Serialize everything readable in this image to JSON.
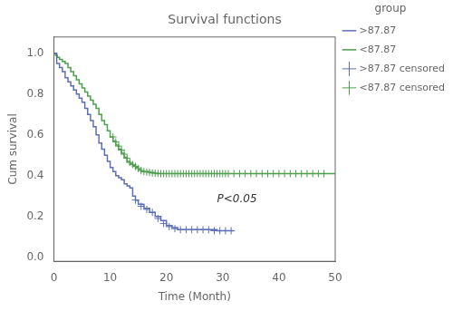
{
  "chart_data": {
    "type": "step",
    "title": "Survival functions",
    "x_label": "Time (Month)",
    "y_label": "Cum survival",
    "xlim": [
      0,
      50
    ],
    "ylim": [
      -0.02,
      1.08
    ],
    "xticks": [
      0,
      10,
      20,
      30,
      40,
      50
    ],
    "yticks": [
      {
        "value": 0.0,
        "label": "0.0"
      },
      0.2,
      0.4,
      0.6,
      0.8,
      {
        "value": 1.0,
        "label": "1.0"
      }
    ],
    "grid": false,
    "legend": "right",
    "legend_title": "group",
    "annotations": [
      {
        "text": "P<0.05",
        "x": 29,
        "y": 0.255
      }
    ],
    "series": [
      {
        "name": ">87.87",
        "type": "step",
        "color": "#5b6fb5",
        "x": [
          0,
          0.5,
          1.0,
          1.5,
          2.0,
          2.5,
          3.0,
          3.5,
          4.0,
          4.5,
          5.0,
          5.5,
          6.0,
          6.5,
          7.0,
          7.5,
          8.0,
          8.5,
          9.0,
          9.5,
          10.0,
          10.5,
          11.0,
          11.5,
          12.0,
          12.5,
          13.0,
          13.5,
          14.0,
          14.5,
          15.0,
          16.0,
          17.0,
          18.0,
          19.0,
          20.0,
          21.0,
          22.0,
          23.0,
          24.0,
          25.0,
          26.0,
          27.0,
          28.0,
          29.0,
          30.0,
          31.0,
          32.0
        ],
        "values": [
          1.0,
          0.95,
          0.93,
          0.91,
          0.88,
          0.86,
          0.84,
          0.82,
          0.8,
          0.78,
          0.76,
          0.73,
          0.7,
          0.67,
          0.64,
          0.6,
          0.56,
          0.53,
          0.5,
          0.47,
          0.44,
          0.42,
          0.4,
          0.39,
          0.38,
          0.36,
          0.35,
          0.34,
          0.3,
          0.28,
          0.26,
          0.24,
          0.22,
          0.2,
          0.18,
          0.155,
          0.145,
          0.135,
          0.135,
          0.135,
          0.135,
          0.135,
          0.135,
          0.135,
          0.13,
          0.13,
          0.13,
          0.13
        ]
      },
      {
        "name": "<87.87",
        "type": "step",
        "color": "#4d9e4d",
        "x": [
          0,
          0.3,
          0.6,
          1.0,
          1.5,
          2.0,
          2.5,
          3.0,
          3.5,
          4.0,
          4.5,
          5.0,
          5.5,
          6.0,
          6.5,
          7.0,
          7.5,
          8.0,
          8.5,
          9.0,
          9.5,
          10.0,
          10.5,
          11.0,
          11.5,
          12.0,
          12.5,
          13.0,
          13.5,
          14.0,
          14.5,
          15.0,
          15.5,
          16.0,
          17.0,
          18.0,
          19.0,
          20.0,
          21.0,
          22.0,
          23.0,
          24.0,
          25.0,
          26.0,
          27.0,
          28.0,
          29.0,
          30.0,
          31.0,
          32.0,
          34.0,
          36.0,
          38.0,
          40.0,
          42.0,
          44.0,
          46.0,
          48.0,
          50.0
        ],
        "values": [
          1.0,
          0.99,
          0.98,
          0.97,
          0.96,
          0.95,
          0.93,
          0.91,
          0.89,
          0.87,
          0.85,
          0.83,
          0.81,
          0.79,
          0.77,
          0.75,
          0.73,
          0.7,
          0.67,
          0.65,
          0.62,
          0.59,
          0.57,
          0.55,
          0.53,
          0.51,
          0.49,
          0.47,
          0.46,
          0.45,
          0.44,
          0.43,
          0.42,
          0.42,
          0.415,
          0.41,
          0.41,
          0.41,
          0.41,
          0.41,
          0.41,
          0.41,
          0.41,
          0.41,
          0.41,
          0.41,
          0.41,
          0.41,
          0.41,
          0.41,
          0.41,
          0.41,
          0.41,
          0.41,
          0.41,
          0.41,
          0.41,
          0.41,
          0.41
        ]
      },
      {
        "name": ">87.87 censored",
        "type": "scatter",
        "marker": "plus",
        "color": "#5b6fb5",
        "x": [
          14.5,
          15.5,
          16.5,
          17.5,
          18.5,
          19.5,
          20.5,
          21.5,
          22.5,
          23.5,
          24.5,
          25.5,
          26.5,
          27.5,
          28.5,
          29.5,
          30.5,
          31.5
        ],
        "values": [
          0.28,
          0.25,
          0.235,
          0.22,
          0.19,
          0.165,
          0.15,
          0.14,
          0.135,
          0.135,
          0.135,
          0.135,
          0.135,
          0.135,
          0.13,
          0.13,
          0.13,
          0.13
        ]
      },
      {
        "name": "<87.87 censored",
        "type": "scatter",
        "marker": "plus",
        "color": "#4d9e4d",
        "x": [
          10.5,
          11.0,
          11.5,
          12.0,
          12.5,
          13.0,
          13.5,
          14.0,
          14.5,
          15.0,
          15.5,
          16.0,
          16.5,
          17.0,
          17.5,
          18.0,
          18.5,
          19.0,
          19.5,
          20.0,
          20.5,
          21.0,
          21.5,
          22.0,
          22.5,
          23.0,
          23.5,
          24.0,
          24.5,
          25.0,
          25.5,
          26.0,
          26.5,
          27.0,
          27.5,
          28.0,
          28.5,
          29.0,
          29.5,
          30.0,
          30.5,
          31.0,
          32.0,
          33.0,
          34.0,
          35.0,
          36.0,
          37.0,
          38.0,
          39.0,
          40.0,
          41.0,
          42.0,
          43.0,
          44.0,
          45.0,
          46.0,
          47.0,
          48.0
        ],
        "values": [
          0.59,
          0.565,
          0.545,
          0.525,
          0.505,
          0.485,
          0.465,
          0.455,
          0.445,
          0.435,
          0.425,
          0.42,
          0.418,
          0.416,
          0.413,
          0.412,
          0.411,
          0.41,
          0.41,
          0.41,
          0.41,
          0.41,
          0.41,
          0.41,
          0.41,
          0.41,
          0.41,
          0.41,
          0.41,
          0.41,
          0.41,
          0.41,
          0.41,
          0.41,
          0.41,
          0.41,
          0.41,
          0.41,
          0.41,
          0.41,
          0.41,
          0.41,
          0.41,
          0.41,
          0.41,
          0.41,
          0.41,
          0.41,
          0.41,
          0.41,
          0.41,
          0.41,
          0.41,
          0.41,
          0.41,
          0.41,
          0.41,
          0.41,
          0.41
        ]
      }
    ]
  }
}
